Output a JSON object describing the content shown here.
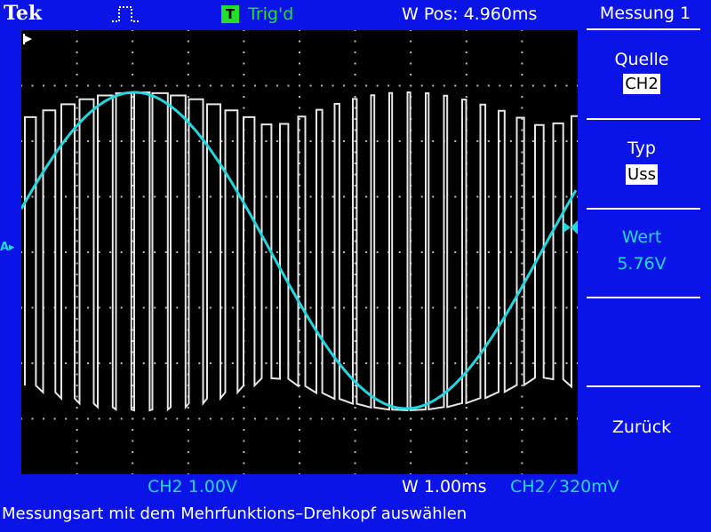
{
  "header": {
    "brand": "Tek",
    "trigger_badge": "T",
    "trigger_status": "Trig'd",
    "horizontal_position": "W Pos: 4.960ms"
  },
  "menu": {
    "title": "Messung 1",
    "items": [
      {
        "label": "Quelle",
        "value": "CH2"
      },
      {
        "label": "Typ",
        "value": "Uss"
      },
      {
        "label": "Wert",
        "value": "5.76V"
      },
      {
        "label": "Zurück"
      }
    ]
  },
  "status": {
    "channel_scale": "CH2  1.00V",
    "time_scale": "W 1.00ms",
    "trigger_info": "CH2 ⁄ 320mV",
    "message": "Messungsart mit dem Mehrfunktions–Drehkopf auswählen"
  },
  "marker": {
    "reference": "A▸"
  },
  "colors": {
    "background": "#0a14e6",
    "ch2_trace": "#22d8e0",
    "ch1_trace": "#e8e8e8",
    "trigger_green": "#22e02a",
    "grid": "#bbbbbb"
  },
  "icons": {
    "acquisition": "pulse-icon",
    "trigger": "trigger-badge-icon"
  }
}
